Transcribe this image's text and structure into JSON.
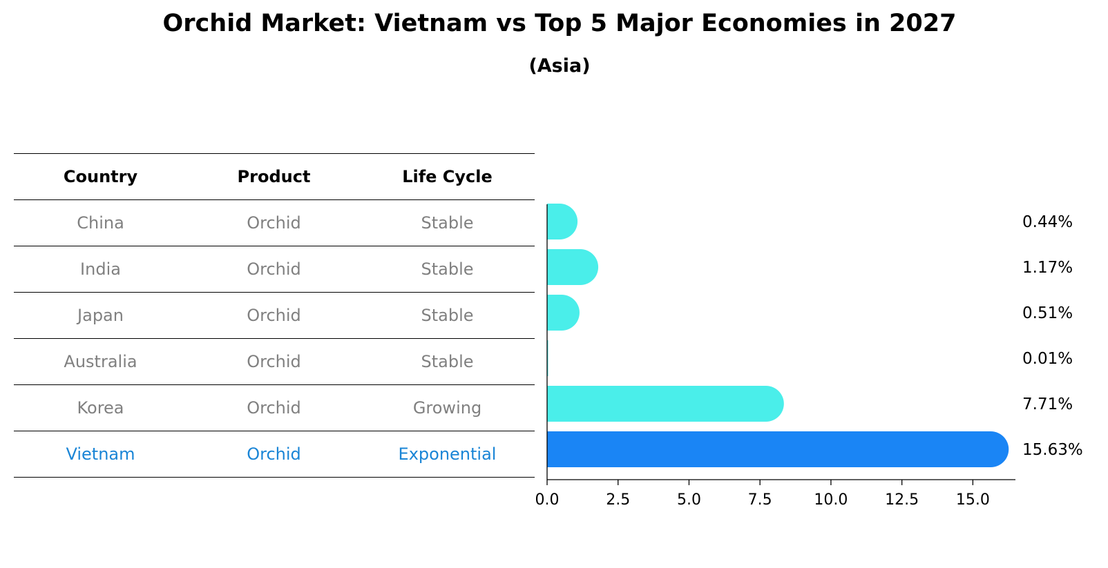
{
  "header": {
    "title": "Orchid Market: Vietnam vs Top 5 Major Economies in 2027",
    "subtitle": "(Asia)"
  },
  "table": {
    "columns": [
      "Country",
      "Product",
      "Life Cycle"
    ],
    "rows": [
      {
        "country": "China",
        "product": "Orchid",
        "life_cycle": "Stable"
      },
      {
        "country": "India",
        "product": "Orchid",
        "life_cycle": "Stable"
      },
      {
        "country": "Japan",
        "product": "Orchid",
        "life_cycle": "Stable"
      },
      {
        "country": "Australia",
        "product": "Orchid",
        "life_cycle": "Stable"
      },
      {
        "country": "Korea",
        "product": "Orchid",
        "life_cycle": "Growing"
      },
      {
        "country": "Vietnam",
        "product": "Orchid",
        "life_cycle": "Exponential"
      }
    ]
  },
  "colors": {
    "bar": "#4aeeea",
    "highlight_bar": "#1a85f5",
    "highlight_text": "#1a85d6",
    "muted_text": "#808080"
  },
  "chart_data": {
    "type": "bar",
    "orientation": "horizontal",
    "categories": [
      "China",
      "India",
      "Japan",
      "Australia",
      "Korea",
      "Vietnam"
    ],
    "values": [
      0.44,
      1.17,
      0.51,
      0.01,
      7.71,
      15.63
    ],
    "labels": [
      "0.44%",
      "1.17%",
      "0.51%",
      "0.01%",
      "7.71%",
      "15.63%"
    ],
    "highlight_category": "Vietnam",
    "xlim": [
      0,
      16.5
    ],
    "xticks": [
      0.0,
      2.5,
      5.0,
      7.5,
      10.0,
      12.5,
      15.0
    ],
    "xtick_labels": [
      "0.0",
      "2.5",
      "5.0",
      "7.5",
      "10.0",
      "12.5",
      "15.0"
    ],
    "grid": false
  }
}
